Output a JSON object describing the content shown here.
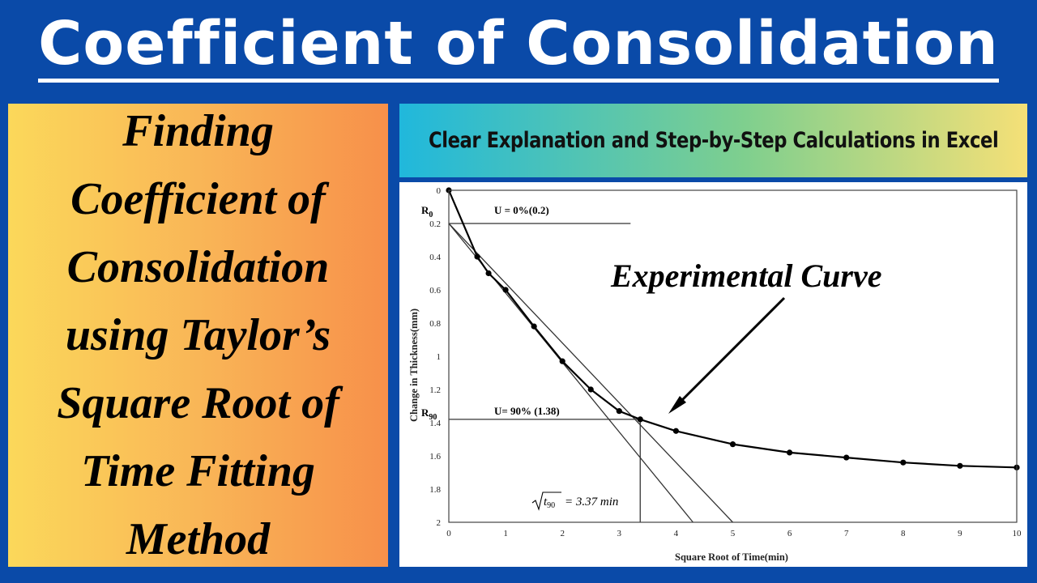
{
  "title": "Coefficient of Consolidation",
  "left_panel": {
    "lines": [
      "Finding",
      "Coefficient of",
      "Consolidation",
      "using Taylor’s",
      "Square Root of",
      "Time Fitting",
      "Method"
    ]
  },
  "banner": "Clear Explanation and Step-by-Step Calculations in Excel",
  "colors": {
    "background": "#0a4aa8",
    "left_gradient": [
      "#fbd85a",
      "#f7904a"
    ],
    "banner_gradient": [
      "#20b8dc",
      "#f5e077"
    ]
  },
  "chart_data": {
    "type": "scatter",
    "xlabel": "Square Root of Time(min)",
    "ylabel": "Change in Thickness(mm)",
    "xlim": [
      0,
      10
    ],
    "ylim": [
      0,
      2
    ],
    "y_inverted": true,
    "grid": false,
    "x_ticks": [
      "0",
      "1",
      "2",
      "3",
      "4",
      "5",
      "6",
      "7",
      "8",
      "9",
      "10"
    ],
    "y_ticks": [
      "0",
      "0.2",
      "0.4",
      "0.6",
      "0.8",
      "1",
      "1.2",
      "1.4",
      "1.6",
      "1.8",
      "2"
    ],
    "series": [
      {
        "x": [
          0,
          0.5,
          0.7,
          1,
          1.5,
          2,
          2.5,
          3,
          3.37,
          4,
          5,
          6,
          7,
          8,
          9,
          10
        ],
        "y": [
          0,
          0.4,
          0.5,
          0.6,
          0.82,
          1.03,
          1.2,
          1.33,
          1.38,
          1.45,
          1.53,
          1.58,
          1.61,
          1.64,
          1.66,
          1.67
        ]
      }
    ],
    "lines": [
      {
        "x": [
          0,
          4.3
        ],
        "y": [
          0.2,
          2.0
        ]
      },
      {
        "x": [
          0,
          5.0
        ],
        "y": [
          0.2,
          2.0
        ]
      },
      {
        "x": [
          0,
          3.2
        ],
        "y": [
          0.2,
          0.2
        ]
      },
      {
        "x": [
          0,
          3.37
        ],
        "y": [
          1.38,
          1.38
        ]
      },
      {
        "x": [
          3.37,
          3.37
        ],
        "y": [
          1.38,
          2.0
        ]
      }
    ],
    "annotations": {
      "r0_label": "R",
      "r0_sub": "0",
      "u0": "U = 0%(0.2)",
      "r90_label": "R",
      "r90_sub": "90",
      "u90": "U= 90% (1.38)",
      "t90_var": "t",
      "t90_sub": "90",
      "t90_value": "= 3.37 min",
      "experimental": "Experimental Curve"
    }
  }
}
